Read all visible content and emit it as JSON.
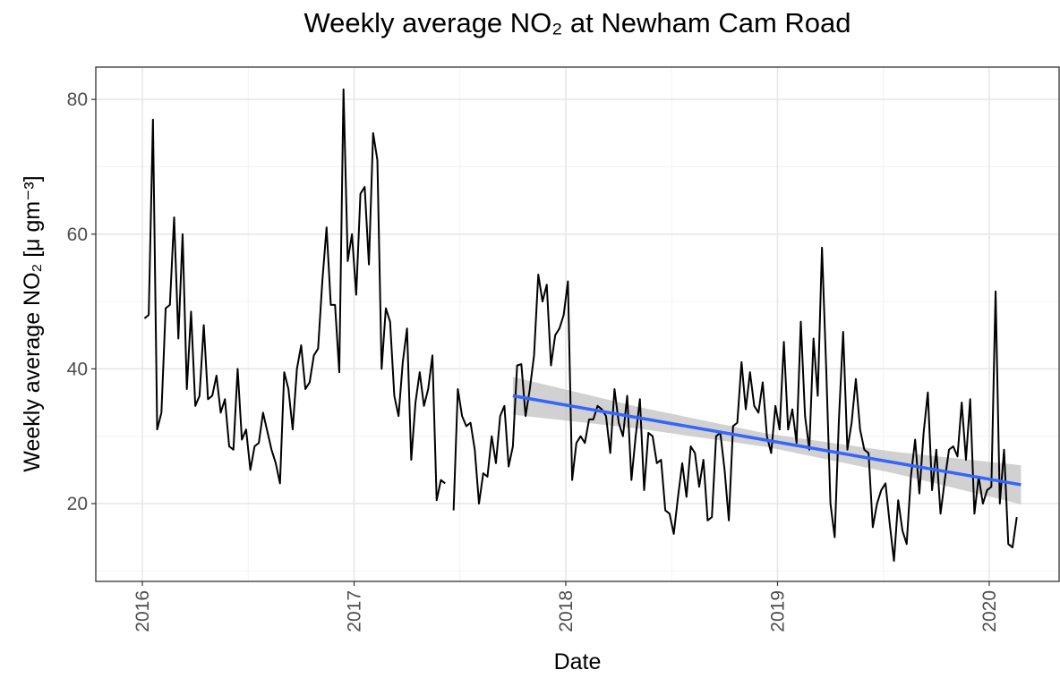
{
  "chart_data": {
    "type": "line",
    "title": "Weekly average NO₂ at Newham Cam Road",
    "x_label": "Date",
    "y_label": "Weekly average NO₂ [μ gm⁻³]",
    "xlim": [
      2015.78,
      2020.33
    ],
    "ylim": [
      8.45,
      84.8
    ],
    "xticks": [
      2016,
      2017,
      2018,
      2019,
      2020
    ],
    "yticks": [
      20,
      40,
      60,
      80
    ],
    "grid": true,
    "series": [
      {
        "color": "#000000",
        "x": [
          2016.01,
          2016.03,
          2016.05,
          2016.07,
          2016.09,
          2016.11,
          2016.13,
          2016.15,
          2016.17,
          2016.19,
          2016.21,
          2016.23,
          2016.25,
          2016.27,
          2016.29,
          2016.31,
          2016.33,
          2016.35,
          2016.37,
          2016.39,
          2016.41,
          2016.43,
          2016.45,
          2016.47,
          2016.49,
          2016.51,
          2016.53,
          2016.55,
          2016.57,
          2016.61,
          2016.63,
          2016.65,
          2016.67,
          2016.69,
          2016.71,
          2016.73,
          2016.75,
          2016.77,
          2016.79,
          2016.81,
          2016.83,
          2016.85,
          2016.87,
          2016.89,
          2016.91,
          2016.93,
          2016.95,
          2016.97,
          2016.99,
          2017.01,
          2017.03,
          2017.05,
          2017.07,
          2017.09,
          2017.11,
          2017.13,
          2017.15,
          2017.17,
          2017.19,
          2017.21,
          2017.23,
          2017.25,
          2017.27,
          2017.29,
          2017.31,
          2017.33,
          2017.35,
          2017.37,
          2017.39,
          2017.41,
          2017.43,
          2017.45,
          2017.47,
          2017.49,
          2017.51,
          2017.53,
          2017.55,
          2017.57,
          2017.59,
          2017.61,
          2017.63,
          2017.65,
          2017.67,
          2017.69,
          2017.71,
          2017.73,
          2017.75,
          2017.77,
          2017.79,
          2017.81,
          2017.83,
          2017.85,
          2017.87,
          2017.89,
          2017.91,
          2017.93,
          2017.95,
          2017.97,
          2017.99,
          2018.01,
          2018.03,
          2018.05,
          2018.07,
          2018.09,
          2018.11,
          2018.13,
          2018.15,
          2018.17,
          2018.19,
          2018.21,
          2018.23,
          2018.25,
          2018.27,
          2018.29,
          2018.31,
          2018.33,
          2018.35,
          2018.37,
          2018.39,
          2018.41,
          2018.43,
          2018.45,
          2018.47,
          2018.49,
          2018.51,
          2018.53,
          2018.55,
          2018.57,
          2018.59,
          2018.61,
          2018.63,
          2018.65,
          2018.67,
          2018.69,
          2018.71,
          2018.73,
          2018.75,
          2018.77,
          2018.79,
          2018.81,
          2018.83,
          2018.85,
          2018.87,
          2018.89,
          2018.91,
          2018.93,
          2018.95,
          2018.97,
          2018.99,
          2019.01,
          2019.03,
          2019.05,
          2019.07,
          2019.09,
          2019.11,
          2019.13,
          2019.15,
          2019.17,
          2019.19,
          2019.21,
          2019.23,
          2019.25,
          2019.27,
          2019.29,
          2019.31,
          2019.33,
          2019.35,
          2019.37,
          2019.39,
          2019.41,
          2019.43,
          2019.45,
          2019.47,
          2019.49,
          2019.51,
          2019.53,
          2019.55,
          2019.57,
          2019.59,
          2019.61,
          2019.63,
          2019.65,
          2019.67,
          2019.69,
          2019.71,
          2019.73,
          2019.75,
          2019.77,
          2019.79,
          2019.81,
          2019.83,
          2019.85,
          2019.87,
          2019.89,
          2019.91,
          2019.93,
          2019.95,
          2019.97,
          2019.99,
          2020.01,
          2020.03,
          2020.05,
          2020.07,
          2020.09,
          2020.11,
          2020.13
        ],
        "values": [
          47.5,
          48,
          77,
          31,
          33.5,
          49,
          49.5,
          62.5,
          44.5,
          60,
          37,
          48.5,
          34.5,
          36,
          46.5,
          35.5,
          36,
          39,
          33.5,
          35.5,
          28.5,
          28,
          40,
          29.5,
          31,
          25,
          28.5,
          29,
          33.5,
          28,
          26,
          23,
          39.5,
          37,
          31,
          40,
          43.5,
          37,
          38,
          42,
          43,
          53,
          61,
          49.5,
          49.5,
          39.5,
          81.5,
          56,
          60,
          51,
          66,
          67,
          55.5,
          75,
          71,
          40,
          49,
          47,
          36,
          33,
          41,
          46,
          26.5,
          35,
          39.5,
          34.5,
          37,
          42,
          20.5,
          23.5,
          23,
          null,
          19,
          37,
          33,
          31.5,
          32,
          28,
          20,
          24.5,
          24,
          30,
          26,
          33,
          34.5,
          25.5,
          28.5,
          40.5,
          40.7,
          33,
          37,
          42,
          54,
          50,
          52.5,
          40.5,
          45,
          46,
          48,
          53,
          23.5,
          29,
          30,
          29,
          32.5,
          32.5,
          34.5,
          34,
          33,
          27.5,
          37,
          32,
          30,
          36,
          23.5,
          30,
          35.5,
          22,
          30.5,
          30,
          26,
          26.5,
          19,
          18.5,
          15.5,
          21,
          26,
          21,
          28.5,
          27.5,
          22.5,
          26.5,
          17.5,
          18,
          30,
          30.5,
          25,
          17.5,
          31.5,
          32,
          41,
          34,
          39.5,
          34.5,
          33.5,
          38,
          30,
          27.5,
          34.5,
          31,
          44,
          31,
          34,
          29,
          47,
          33,
          28,
          44.5,
          36,
          58,
          40,
          20,
          15,
          32.5,
          45.5,
          28,
          32,
          38.5,
          31,
          28,
          27.5,
          16.5,
          20,
          22,
          23,
          17,
          11.5,
          20.5,
          16,
          14,
          24,
          29.5,
          21.5,
          30.5,
          36.5,
          22,
          28,
          18.5,
          23.5,
          28,
          28.5,
          27,
          35,
          26.5,
          35.5,
          18.5,
          24,
          20,
          22,
          22.5,
          51.5,
          20,
          28,
          14,
          13.5,
          18
        ]
      }
    ],
    "trend": {
      "color": "#3366ff",
      "x": [
        2017.75,
        2020.15
      ],
      "values": [
        36,
        22.8
      ]
    },
    "ribbon": {
      "color": "#bebebe",
      "x": [
        2017.75,
        2018.35,
        2018.95,
        2019.55,
        2020.15
      ],
      "lower": [
        33.2,
        31.1,
        28.4,
        24.5,
        19.9
      ],
      "upper": [
        38.8,
        34.3,
        30.4,
        27.7,
        25.7
      ]
    }
  }
}
